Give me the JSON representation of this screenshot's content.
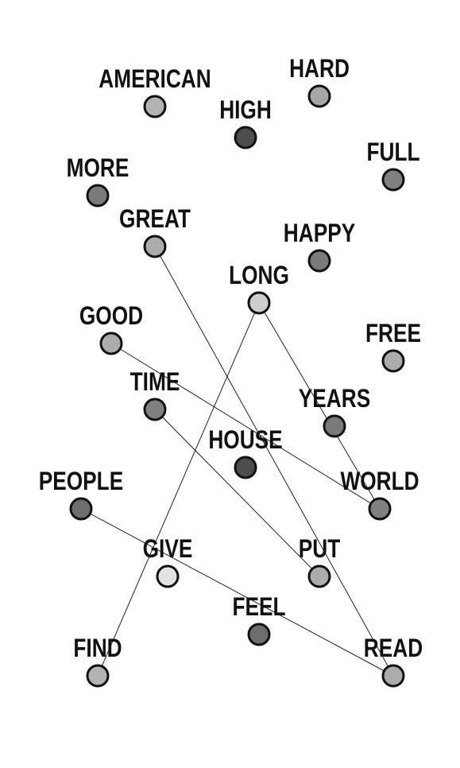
{
  "nodes": [
    {
      "id": "american",
      "label": "AMERICAN",
      "color": "#b3b3b3"
    },
    {
      "id": "hard",
      "label": "HARD",
      "color": "#a6a6a6"
    },
    {
      "id": "high",
      "label": "HIGH",
      "color": "#4d4d4d"
    },
    {
      "id": "full",
      "label": "FULL",
      "color": "#808080"
    },
    {
      "id": "more",
      "label": "MORE",
      "color": "#7a7a7a"
    },
    {
      "id": "great",
      "label": "GREAT",
      "color": "#acacac"
    },
    {
      "id": "happy",
      "label": "HAPPY",
      "color": "#7a7a7a"
    },
    {
      "id": "long",
      "label": "LONG",
      "color": "#cccccc"
    },
    {
      "id": "good",
      "label": "GOOD",
      "color": "#acacac"
    },
    {
      "id": "free",
      "label": "FREE",
      "color": "#acacac"
    },
    {
      "id": "time",
      "label": "TIME",
      "color": "#808080"
    },
    {
      "id": "years",
      "label": "YEARS",
      "color": "#7a7a7a"
    },
    {
      "id": "house",
      "label": "HOUSE",
      "color": "#4d4d4d"
    },
    {
      "id": "people",
      "label": "PEOPLE",
      "color": "#6e6e6e"
    },
    {
      "id": "world",
      "label": "WORLD",
      "color": "#808080"
    },
    {
      "id": "give",
      "label": "GIVE",
      "color": "#e3e3e3"
    },
    {
      "id": "put",
      "label": "PUT",
      "color": "#acacac"
    },
    {
      "id": "feel",
      "label": "FEEL",
      "color": "#6e6e6e"
    },
    {
      "id": "find",
      "label": "FIND",
      "color": "#b3b3b3"
    },
    {
      "id": "read",
      "label": "READ",
      "color": "#acacac"
    }
  ],
  "edges": [
    {
      "from": "great",
      "to": "read"
    },
    {
      "from": "long",
      "to": "find"
    },
    {
      "from": "long",
      "to": "world"
    },
    {
      "from": "good",
      "to": "world"
    },
    {
      "from": "time",
      "to": "put"
    },
    {
      "from": "people",
      "to": "read"
    }
  ]
}
